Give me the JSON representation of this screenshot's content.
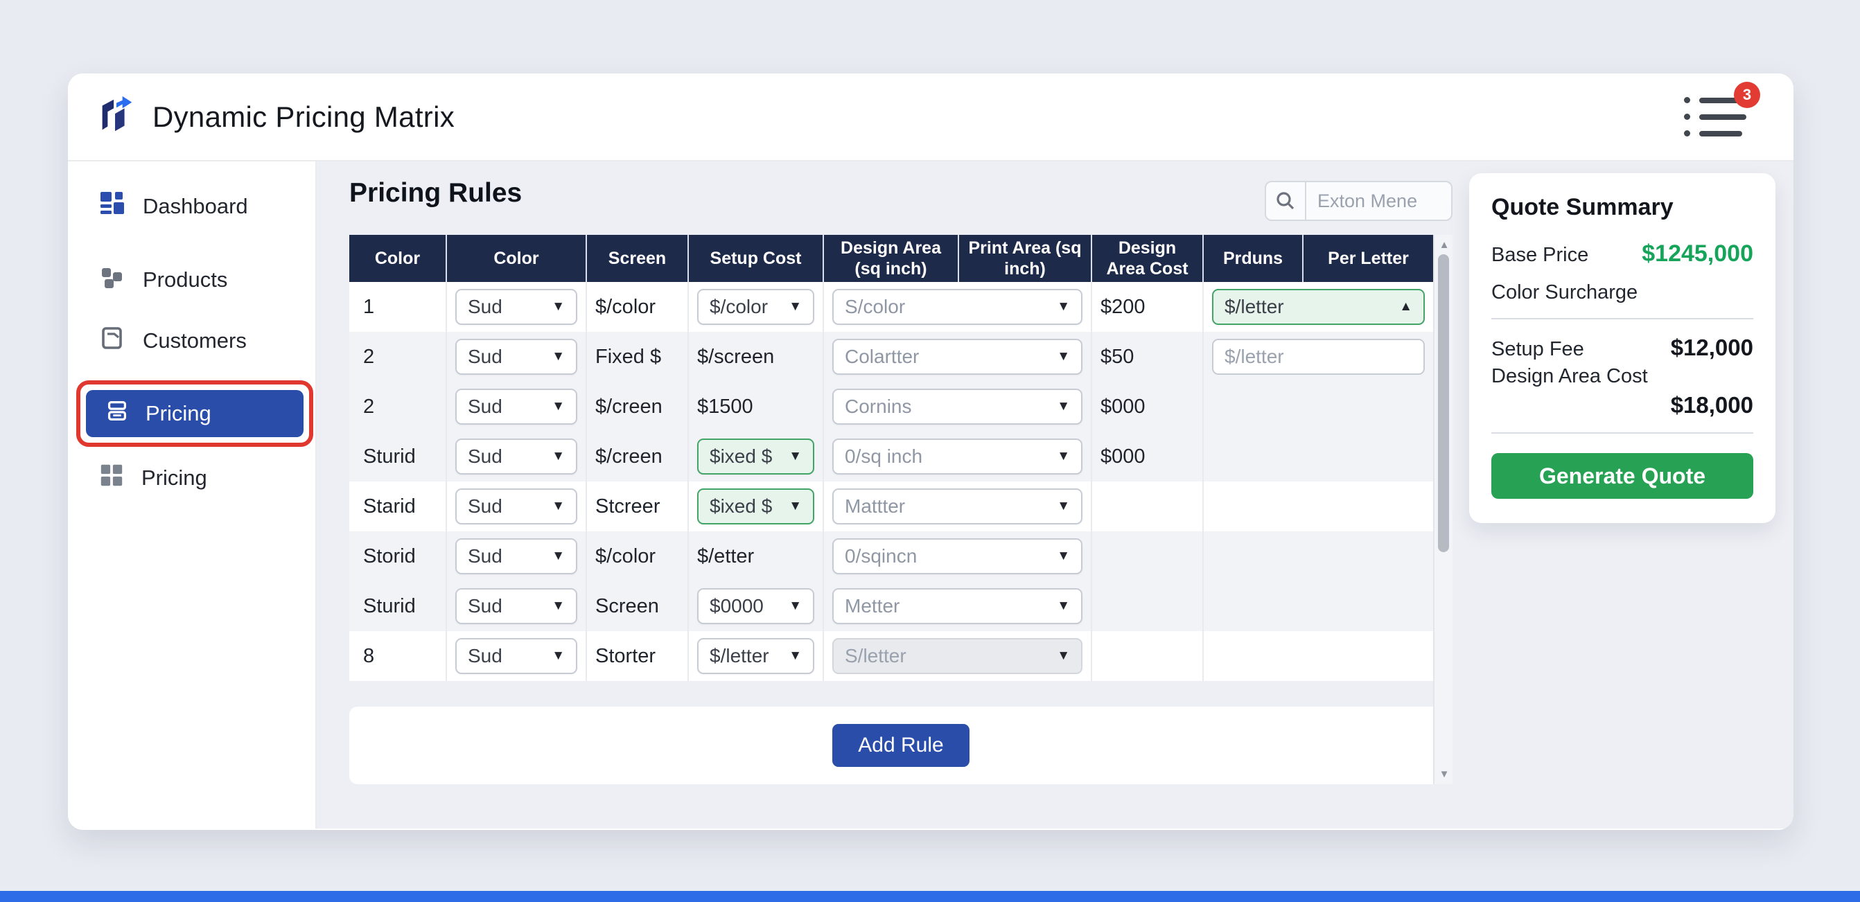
{
  "app": {
    "title": "Dynamic Pricing Matrix",
    "notifications_badge": "3"
  },
  "sidebar": {
    "items": [
      {
        "label": "Dashboard",
        "icon": "dashboard-icon",
        "active": false
      },
      {
        "label": "Products",
        "icon": "products-icon",
        "active": false
      },
      {
        "label": "Customers",
        "icon": "customers-icon",
        "active": false
      },
      {
        "label": "Pricing",
        "icon": "pricing-icon",
        "active": true,
        "annotated": true
      },
      {
        "label": "Pricing",
        "icon": "grid-icon",
        "active": false
      }
    ]
  },
  "main": {
    "heading": "Pricing Rules",
    "search": {
      "placeholder": "Exton Mene",
      "icon": "search-icon"
    },
    "add_rule_label": "Add Rule",
    "table": {
      "columns": [
        "Color",
        "Color",
        "Screen",
        "Setup Cost",
        "Design Area (sq inch)",
        "Print Area (sq inch)",
        "Design Area Cost",
        "Prduns",
        "Per Letter"
      ],
      "rows": [
        [
          {
            "t": "text",
            "v": "1"
          },
          {
            "t": "select",
            "v": "Sud"
          },
          {
            "t": "text",
            "v": "$/color"
          },
          {
            "t": "select",
            "v": "$/color"
          },
          {
            "t": "select",
            "v": "S/color",
            "span": 2,
            "muted": true
          },
          {
            "t": "text",
            "v": "$200"
          },
          {
            "t": "select",
            "v": "$/letter",
            "span": 2,
            "variant": "green",
            "arrow": "up"
          }
        ],
        [
          {
            "t": "text",
            "v": "2"
          },
          {
            "t": "select",
            "v": "Sud"
          },
          {
            "t": "text",
            "v": "Fixed $"
          },
          {
            "t": "text",
            "v": "$/screen"
          },
          {
            "t": "select",
            "v": "Colartter",
            "span": 2,
            "muted": true
          },
          {
            "t": "text",
            "v": "$50"
          },
          {
            "t": "input",
            "v": "$/letter",
            "span": 2
          }
        ],
        [
          {
            "t": "text",
            "v": "2"
          },
          {
            "t": "select",
            "v": "Sud"
          },
          {
            "t": "text",
            "v": "$/creen"
          },
          {
            "t": "text",
            "v": "$1500"
          },
          {
            "t": "select",
            "v": "Cornins",
            "span": 2,
            "muted": true
          },
          {
            "t": "text",
            "v": "$000"
          },
          {
            "t": "empty",
            "span": 2
          }
        ],
        [
          {
            "t": "text",
            "v": "Sturid"
          },
          {
            "t": "select",
            "v": "Sud"
          },
          {
            "t": "text",
            "v": "$/creen"
          },
          {
            "t": "select",
            "v": "$ixed $",
            "variant": "green"
          },
          {
            "t": "select",
            "v": "0/sq inch",
            "span": 2,
            "muted": true
          },
          {
            "t": "text",
            "v": "$000"
          },
          {
            "t": "empty",
            "span": 2
          }
        ],
        [
          {
            "t": "text",
            "v": "Starid"
          },
          {
            "t": "select",
            "v": "Sud"
          },
          {
            "t": "text",
            "v": "Stcreer"
          },
          {
            "t": "select",
            "v": "$ixed $",
            "variant": "green"
          },
          {
            "t": "select",
            "v": "Mattter",
            "span": 2,
            "muted": true
          },
          {
            "t": "empty"
          },
          {
            "t": "empty",
            "span": 2
          }
        ],
        [
          {
            "t": "text",
            "v": "Storid"
          },
          {
            "t": "select",
            "v": "Sud"
          },
          {
            "t": "text",
            "v": "$/color"
          },
          {
            "t": "text",
            "v": "$/etter"
          },
          {
            "t": "select",
            "v": "0/sqincn",
            "span": 2,
            "muted": true
          },
          {
            "t": "empty"
          },
          {
            "t": "empty",
            "span": 2
          }
        ],
        [
          {
            "t": "text",
            "v": "Sturid"
          },
          {
            "t": "select",
            "v": "Sud"
          },
          {
            "t": "text",
            "v": "Screen"
          },
          {
            "t": "select",
            "v": "$0000"
          },
          {
            "t": "select",
            "v": "Metter",
            "span": 2,
            "muted": true
          },
          {
            "t": "empty"
          },
          {
            "t": "empty",
            "span": 2
          }
        ],
        [
          {
            "t": "text",
            "v": "8"
          },
          {
            "t": "select",
            "v": "Sud"
          },
          {
            "t": "text",
            "v": "Storter"
          },
          {
            "t": "select",
            "v": "$/letter"
          },
          {
            "t": "select",
            "v": "S/letter",
            "span": 2,
            "variant": "disabled"
          },
          {
            "t": "empty"
          },
          {
            "t": "empty",
            "span": 2
          }
        ]
      ]
    }
  },
  "quote": {
    "title": "Quote Summary",
    "base_price_label": "Base Price",
    "base_price_value": "$1245,000",
    "color_surcharge_label": "Color Surcharge",
    "setup_fee_label": "Setup Fee",
    "setup_fee_value": "$12,000",
    "design_area_cost_label": "Design Area Cost",
    "design_area_cost_value": "$18,000",
    "generate_label": "Generate Quote"
  },
  "colors": {
    "navy_header": "#1e2a4a",
    "primary_blue": "#2b4daa",
    "money_green": "#16a45a",
    "green_select_bg": "#e6f4eb",
    "green_select_border": "#43a468",
    "annotation_red": "#e0382f",
    "badge_red": "#e23b33",
    "bottom_bar_blue": "#2e6be6"
  }
}
